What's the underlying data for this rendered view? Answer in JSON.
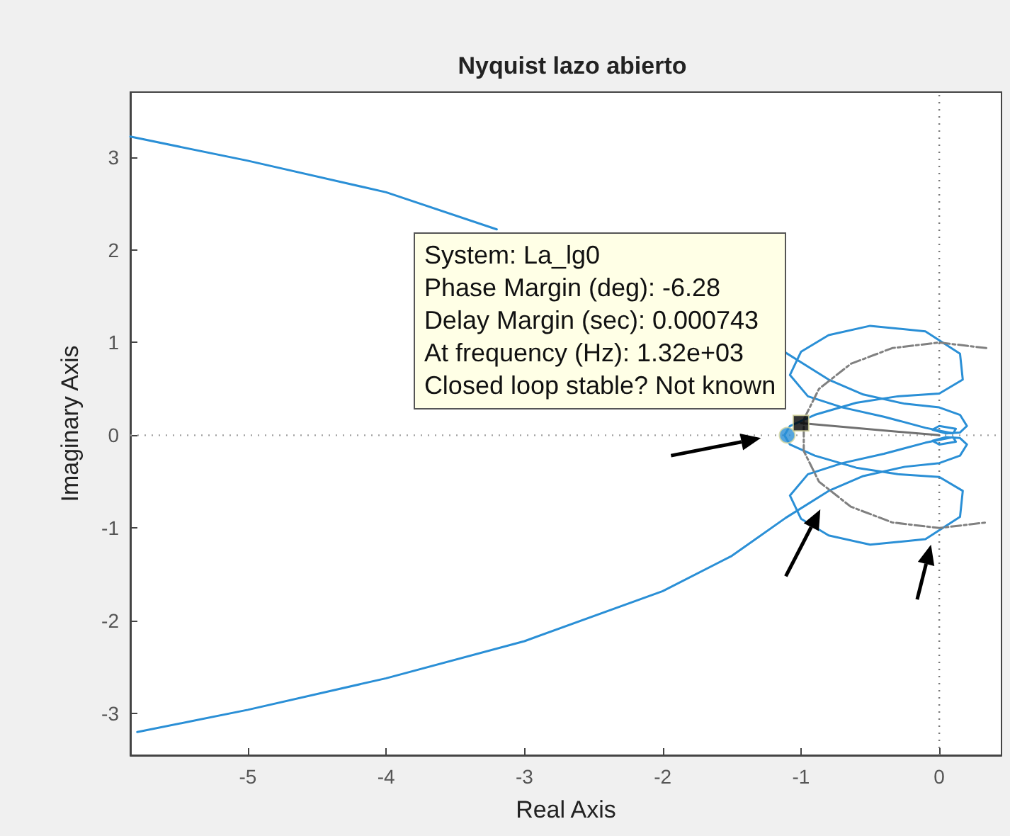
{
  "chart_data": {
    "type": "line",
    "title": "Nyquist lazo abierto",
    "xlabel": "Real Axis",
    "ylabel": "Imaginary Axis",
    "xlim": [
      -5.85,
      0.45
    ],
    "xticks": [
      -5,
      -4,
      -3,
      -2,
      -1,
      0
    ],
    "ylim": [
      -3.45,
      3.7
    ],
    "yticks": [
      -3,
      -2,
      -1,
      0,
      1,
      2,
      3
    ],
    "grid": false,
    "series": [
      {
        "color": "#2a8fd6",
        "x": [
          -5.85,
          -5,
          -4,
          -3.2,
          -2,
          -1.5,
          -1.11,
          -0.8,
          -0.55,
          -0.25,
          0,
          0.15,
          0.2,
          0.15,
          0.05,
          -0.05,
          0,
          0.12,
          0.1,
          -0.1,
          -0.4,
          -0.7,
          -0.95,
          -1.08,
          -1.0,
          -0.8,
          -0.5,
          -0.1,
          0.15,
          0.17,
          0,
          -0.3,
          -0.6,
          -0.9,
          -1.08,
          -1.12,
          -1.08,
          -0.9,
          -0.6,
          -0.3,
          0,
          0.17,
          0.15,
          -0.1,
          -0.5,
          -0.8,
          -1.0,
          -1.08,
          -0.95,
          -0.7,
          -0.4,
          -0.1,
          0.1,
          0.12,
          0,
          -0.05,
          0.05,
          0.15,
          0.2,
          0.15,
          0,
          -0.25,
          -0.55,
          -0.8,
          -1.11,
          -1.5,
          -2,
          -3,
          -4,
          -5,
          -5.8
        ],
        "values": [
          3.22,
          2.96,
          2.62,
          2.22,
          null,
          null,
          0.89,
          0.6,
          0.44,
          0.34,
          0.3,
          0.22,
          0.1,
          0.03,
          0.02,
          0.06,
          0.1,
          0.07,
          0.02,
          0.08,
          0.2,
          0.3,
          0.42,
          0.65,
          0.9,
          1.08,
          1.18,
          1.12,
          0.88,
          0.6,
          0.45,
          0.42,
          0.35,
          0.22,
          0.1,
          0,
          -0.1,
          -0.22,
          -0.35,
          -0.42,
          -0.45,
          -0.6,
          -0.88,
          -1.12,
          -1.18,
          -1.08,
          -0.9,
          -0.65,
          -0.42,
          -0.3,
          -0.2,
          -0.08,
          -0.02,
          -0.07,
          -0.1,
          -0.06,
          -0.02,
          -0.03,
          -0.1,
          -0.22,
          -0.3,
          -0.34,
          -0.44,
          -0.6,
          -0.89,
          -1.3,
          -1.68,
          -2.22,
          -2.62,
          -2.96,
          -3.2
        ]
      },
      {
        "color": "#808080",
        "line_style": "dashed",
        "x": [
          0.34,
          0,
          -0.34,
          -0.64,
          -0.87,
          -0.98,
          -0.98,
          -0.87,
          -0.64,
          -0.34,
          0,
          0.34
        ],
        "values": [
          0.94,
          1,
          0.94,
          0.77,
          0.5,
          0.17,
          -0.17,
          -0.5,
          -0.77,
          -0.94,
          -1,
          -0.94
        ]
      },
      {
        "color": "#707070",
        "x": [
          -1,
          0
        ],
        "values": [
          0.13,
          0
        ]
      },
      {
        "type": "scatter",
        "marker": "circle",
        "color": "#2a8fd6",
        "x": [
          -1.1
        ],
        "values": [
          0
        ]
      },
      {
        "type": "scatter",
        "marker": "square",
        "color": "#000000",
        "x": [
          -1
        ],
        "values": [
          0.13
        ]
      }
    ],
    "ref_lines": [
      {
        "axis": "x",
        "value": 0,
        "color": "#7a7a7a",
        "line_style": "dotted"
      },
      {
        "axis": "y",
        "value": 0,
        "color": "#a0a0a0",
        "line_style": "dotted"
      }
    ],
    "annotations": [
      {
        "text": "System: La_lg0\nPhase Margin (deg): -6.28\nDelay Margin (sec): 0.000743\nAt frequency (Hz): 1.32e+03\nClosed loop stable? Not known",
        "x": -1,
        "y": 0.13
      }
    ]
  }
}
